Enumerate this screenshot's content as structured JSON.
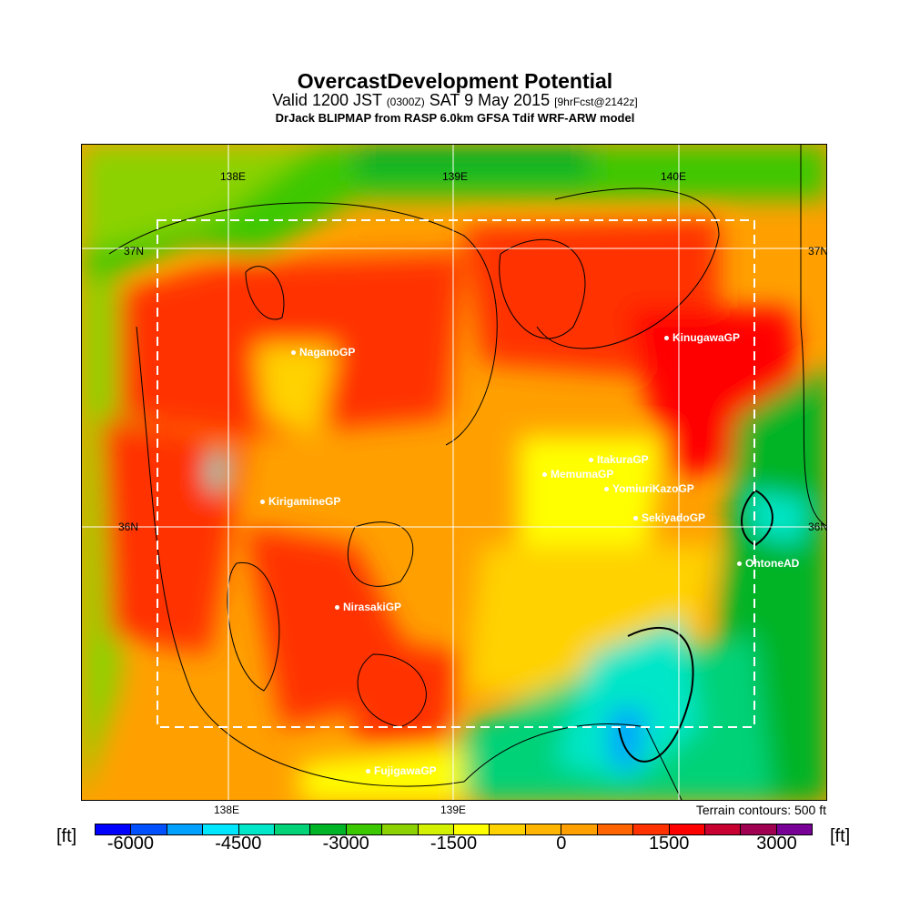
{
  "title": "OvercastDevelopment Potential",
  "subtitle_a": "Valid 1200 JST",
  "subtitle_b": "(0300Z)",
  "subtitle_c": "SAT 9 May 2015",
  "subtitle_d": "[9hrFcst@2142z]",
  "model_line": "DrJack BLIPMAP from RASP 6.0km GFSA Tdif WRF-ARW model",
  "grid_labels": {
    "lon_138": "138E",
    "lon_139": "139E",
    "lon_140": "140E",
    "lat_37": "37N",
    "lat_36": "36N"
  },
  "stations": [
    "NaganoGP",
    "KinugawaGP",
    "ItakuraGP",
    "MemumaGP",
    "YomiuriKazoGP",
    "KirigamineGP",
    "SekiyadoGP",
    "OhtoneAD",
    "NirasakiGP",
    "FujigawaGP"
  ],
  "terrain_note": "Terrain contours: 500 ft",
  "colorbar": {
    "unit": "[ft]",
    "ticks": [
      "-6000",
      "-4500",
      "-3000",
      "-1500",
      "0",
      "1500",
      "3000"
    ],
    "colors": [
      "#0000ff",
      "#0050ff",
      "#00a0ff",
      "#00e6ff",
      "#00e6c8",
      "#00d278",
      "#00b428",
      "#3cc800",
      "#8cd200",
      "#d2f000",
      "#ffff00",
      "#ffd200",
      "#ffb400",
      "#ffa000",
      "#ff6400",
      "#ff3200",
      "#ff0000",
      "#c80032",
      "#a00050",
      "#780096"
    ]
  }
}
